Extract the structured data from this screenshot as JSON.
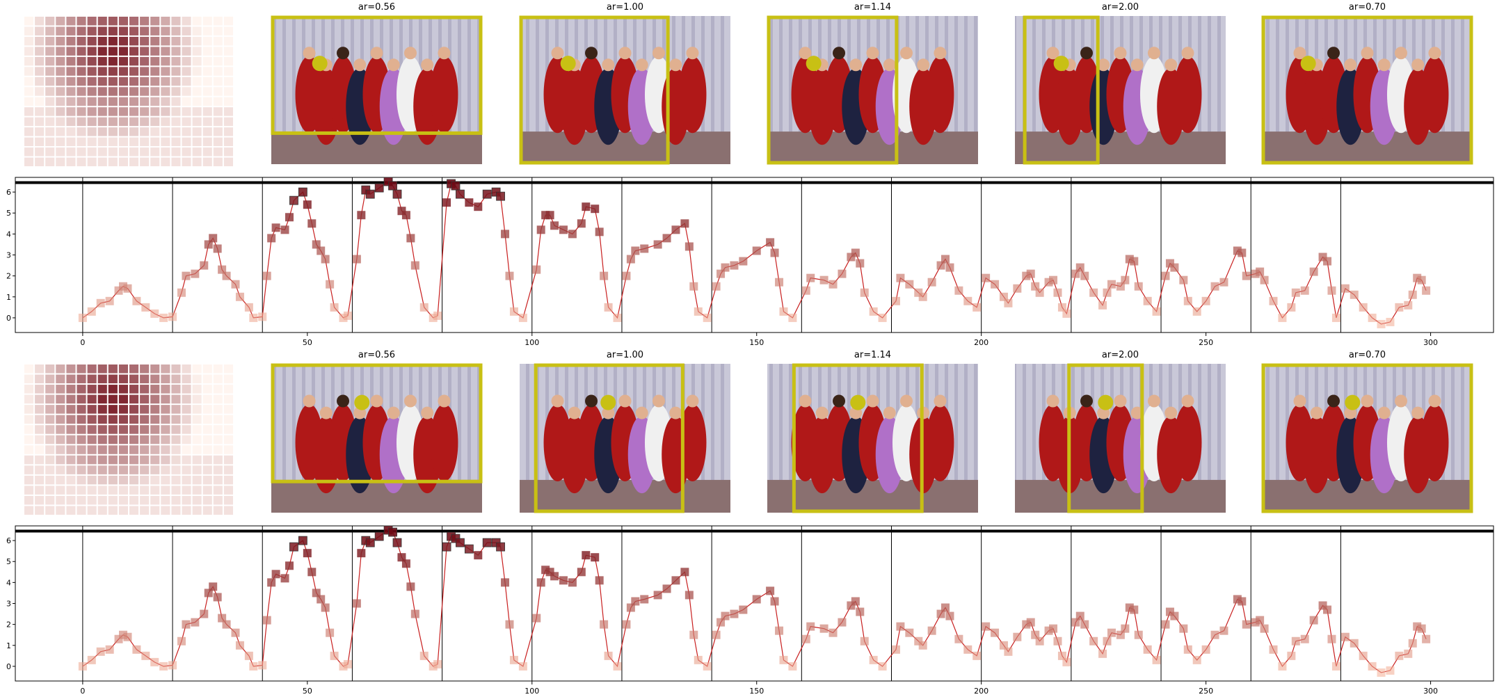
{
  "image_rows": [
    [
      "ar=0.56",
      "ar=1.00",
      "ar=1.14",
      "ar=2.00",
      "ar=0.70"
    ],
    [
      "ar=0.56",
      "ar=1.00",
      "ar=1.14",
      "ar=2.00",
      "ar=0.70"
    ]
  ],
  "chart_data": [
    {
      "type": "line",
      "color": "#c81e1e",
      "marker_colormap": [
        "#fcbba1",
        "#67000d"
      ],
      "x": [
        0,
        2,
        4,
        6,
        8,
        9,
        10,
        12,
        14,
        16,
        18,
        20,
        22,
        23,
        25,
        27,
        28,
        29,
        30,
        31,
        32,
        34,
        35,
        37,
        38,
        40,
        41,
        42,
        43,
        45,
        46,
        47,
        49,
        50,
        51,
        52,
        53,
        54,
        55,
        56,
        58,
        59,
        61,
        62,
        63,
        64,
        66,
        68,
        69,
        70,
        71,
        72,
        73,
        74,
        76,
        78,
        79,
        81,
        82,
        83,
        84,
        86,
        88,
        90,
        92,
        93,
        94,
        95,
        96,
        98,
        101,
        102,
        103,
        104,
        105,
        107,
        109,
        111,
        112,
        114,
        115,
        116,
        117,
        119,
        121,
        122,
        123,
        125,
        128,
        130,
        132,
        134,
        135,
        136,
        137,
        139,
        141,
        142,
        143,
        145,
        147,
        150,
        153,
        154,
        155,
        156,
        158,
        161,
        162,
        165,
        167,
        169,
        171,
        172,
        173,
        174,
        176,
        178,
        181,
        182,
        184,
        186,
        187,
        189,
        191,
        192,
        193,
        195,
        197,
        199,
        201,
        203,
        205,
        206,
        208,
        210,
        211,
        212,
        213,
        215,
        216,
        217,
        218,
        219,
        221,
        222,
        223,
        225,
        227,
        228,
        229,
        231,
        232,
        233,
        234,
        235,
        237,
        239,
        241,
        242,
        243,
        245,
        246,
        248,
        250,
        252,
        254,
        257,
        258,
        259,
        261,
        262,
        263,
        265,
        267,
        269,
        270,
        272,
        274,
        276,
        277,
        278,
        279,
        281,
        283,
        285,
        287,
        289,
        291,
        293,
        295,
        296,
        297,
        298,
        299
      ],
      "values": [
        0,
        0.3,
        0.7,
        0.8,
        1.3,
        1.5,
        1.4,
        0.8,
        0.5,
        0.2,
        0,
        0.05,
        1.2,
        2,
        2.1,
        2.5,
        3.5,
        3.8,
        3.3,
        2.3,
        2,
        1.6,
        1,
        0.5,
        0,
        0.05,
        2,
        3.8,
        4.3,
        4.2,
        4.8,
        5.6,
        6,
        5.4,
        4.5,
        3.5,
        3.2,
        2.8,
        1.6,
        0.5,
        0,
        0.1,
        2.8,
        4.9,
        6.1,
        5.9,
        6.2,
        6.5,
        6.3,
        5.9,
        5.1,
        4.9,
        3.8,
        2.5,
        0.5,
        0,
        0.1,
        5.5,
        6.4,
        6.3,
        5.9,
        5.5,
        5.3,
        5.9,
        6,
        5.8,
        4,
        2,
        0.3,
        0,
        2.3,
        4.2,
        4.9,
        4.9,
        4.4,
        4.2,
        4,
        4.5,
        5.3,
        5.2,
        4.1,
        2,
        0.5,
        0,
        2,
        2.8,
        3.2,
        3.3,
        3.5,
        3.8,
        4.2,
        4.5,
        3.4,
        1.5,
        0.3,
        0,
        1.5,
        2.1,
        2.4,
        2.5,
        2.7,
        3.2,
        3.6,
        3.1,
        1.7,
        0.3,
        0,
        1.3,
        1.9,
        1.8,
        1.6,
        2.1,
        2.9,
        3.1,
        2.6,
        1.2,
        0.3,
        0,
        0.8,
        1.9,
        1.6,
        1.2,
        1,
        1.7,
        2.5,
        2.8,
        2.4,
        1.3,
        0.8,
        0.5,
        1.9,
        1.6,
        1,
        0.7,
        1.4,
        2,
        2.1,
        1.5,
        1.2,
        1.7,
        1.8,
        1.2,
        0.5,
        0.2,
        2.1,
        2.4,
        2,
        1.2,
        0.6,
        1.2,
        1.6,
        1.5,
        1.8,
        2.8,
        2.7,
        1.5,
        0.8,
        0.3,
        2,
        2.6,
        2.4,
        1.8,
        0.8,
        0.3,
        0.8,
        1.5,
        1.7,
        3.2,
        3.1,
        2,
        2.1,
        2.2,
        1.8,
        0.8,
        0,
        0.5,
        1.2,
        1.3,
        2.2,
        2.9,
        2.7,
        1.3,
        0,
        1.4,
        1.1,
        0.5,
        0,
        -0.3,
        -0.2,
        0.5,
        0.6,
        1.1,
        1.9,
        1.8,
        1.3
      ],
      "xlim": [
        -15,
        314
      ],
      "ylim": [
        -0.7,
        6.7
      ],
      "xticks": [
        0,
        50,
        100,
        150,
        200,
        250,
        300
      ],
      "yticks": [
        0,
        1,
        2,
        3,
        4,
        5,
        6
      ],
      "vlines": [
        0,
        20,
        40,
        60,
        80,
        100,
        120,
        140,
        160,
        180,
        200,
        220,
        240,
        260,
        280
      ],
      "hline": 6.45
    },
    {
      "type": "line",
      "color": "#c81e1e",
      "marker_colormap": [
        "#fcbba1",
        "#67000d"
      ],
      "x": [
        0,
        2,
        4,
        6,
        8,
        9,
        10,
        12,
        14,
        16,
        18,
        20,
        22,
        23,
        25,
        27,
        28,
        29,
        30,
        31,
        32,
        34,
        35,
        37,
        38,
        40,
        41,
        42,
        43,
        45,
        46,
        47,
        49,
        50,
        51,
        52,
        53,
        54,
        55,
        56,
        58,
        59,
        61,
        62,
        63,
        64,
        66,
        68,
        69,
        70,
        71,
        72,
        73,
        74,
        76,
        78,
        79,
        81,
        82,
        83,
        84,
        86,
        88,
        90,
        92,
        93,
        94,
        95,
        96,
        98,
        101,
        102,
        103,
        104,
        105,
        107,
        109,
        111,
        112,
        114,
        115,
        116,
        117,
        119,
        121,
        122,
        123,
        125,
        128,
        130,
        132,
        134,
        135,
        136,
        137,
        139,
        141,
        142,
        143,
        145,
        147,
        150,
        153,
        154,
        155,
        156,
        158,
        161,
        162,
        165,
        167,
        169,
        171,
        172,
        173,
        174,
        176,
        178,
        181,
        182,
        184,
        186,
        187,
        189,
        191,
        192,
        193,
        195,
        197,
        199,
        201,
        203,
        205,
        206,
        208,
        210,
        211,
        212,
        213,
        215,
        216,
        217,
        218,
        219,
        221,
        222,
        223,
        225,
        227,
        228,
        229,
        231,
        232,
        233,
        234,
        235,
        237,
        239,
        241,
        242,
        243,
        245,
        246,
        248,
        250,
        252,
        254,
        257,
        258,
        259,
        261,
        262,
        263,
        265,
        267,
        269,
        270,
        272,
        274,
        276,
        277,
        278,
        279,
        281,
        283,
        285,
        287,
        289,
        291,
        293,
        295,
        296,
        297,
        298,
        299
      ],
      "values": [
        0,
        0.3,
        0.7,
        0.8,
        1.3,
        1.5,
        1.4,
        0.8,
        0.5,
        0.2,
        0,
        0.05,
        1.2,
        2,
        2.1,
        2.5,
        3.5,
        3.8,
        3.3,
        2.3,
        2,
        1.6,
        1,
        0.5,
        0,
        0.05,
        2.2,
        4,
        4.4,
        4.2,
        4.8,
        5.7,
        6,
        5.4,
        4.5,
        3.5,
        3.2,
        2.8,
        1.6,
        0.5,
        0,
        0.1,
        3,
        5.4,
        6,
        5.9,
        6.2,
        6.5,
        6.4,
        5.9,
        5.2,
        4.9,
        3.8,
        2.5,
        0.5,
        0,
        0.1,
        5.7,
        6.2,
        6.1,
        5.9,
        5.6,
        5.3,
        5.9,
        5.9,
        5.7,
        4,
        2,
        0.3,
        0,
        2.3,
        4,
        4.6,
        4.5,
        4.3,
        4.1,
        4,
        4.5,
        5.3,
        5.2,
        4.1,
        2,
        0.5,
        0,
        2,
        2.8,
        3.1,
        3.2,
        3.4,
        3.7,
        4.1,
        4.5,
        3.4,
        1.5,
        0.3,
        0,
        1.5,
        2.1,
        2.4,
        2.5,
        2.7,
        3.2,
        3.6,
        3.1,
        1.7,
        0.3,
        0,
        1.3,
        1.9,
        1.8,
        1.6,
        2.1,
        2.9,
        3.1,
        2.6,
        1.2,
        0.3,
        0,
        0.8,
        1.9,
        1.6,
        1.2,
        1,
        1.7,
        2.5,
        2.8,
        2.4,
        1.3,
        0.8,
        0.5,
        1.9,
        1.6,
        1,
        0.7,
        1.4,
        2,
        2.1,
        1.5,
        1.2,
        1.7,
        1.8,
        1.2,
        0.5,
        0.2,
        2.1,
        2.4,
        2,
        1.2,
        0.6,
        1.2,
        1.6,
        1.5,
        1.8,
        2.8,
        2.7,
        1.5,
        0.8,
        0.3,
        2,
        2.6,
        2.4,
        1.8,
        0.8,
        0.3,
        0.8,
        1.5,
        1.7,
        3.2,
        3.1,
        2,
        2.1,
        2.2,
        1.8,
        0.8,
        0,
        0.5,
        1.2,
        1.3,
        2.2,
        2.9,
        2.7,
        1.3,
        0,
        1.4,
        1.1,
        0.5,
        0,
        -0.3,
        -0.2,
        0.5,
        0.6,
        1.1,
        1.9,
        1.8,
        1.3
      ],
      "xlim": [
        -15,
        314
      ],
      "ylim": [
        -0.7,
        6.7
      ],
      "xticks": [
        0,
        50,
        100,
        150,
        200,
        250,
        300
      ],
      "yticks": [
        0,
        1,
        2,
        3,
        4,
        5,
        6
      ],
      "vlines": [
        0,
        20,
        40,
        60,
        80,
        100,
        120,
        140,
        160,
        180,
        200,
        220,
        240,
        260,
        280
      ],
      "hline": 6.45
    }
  ]
}
